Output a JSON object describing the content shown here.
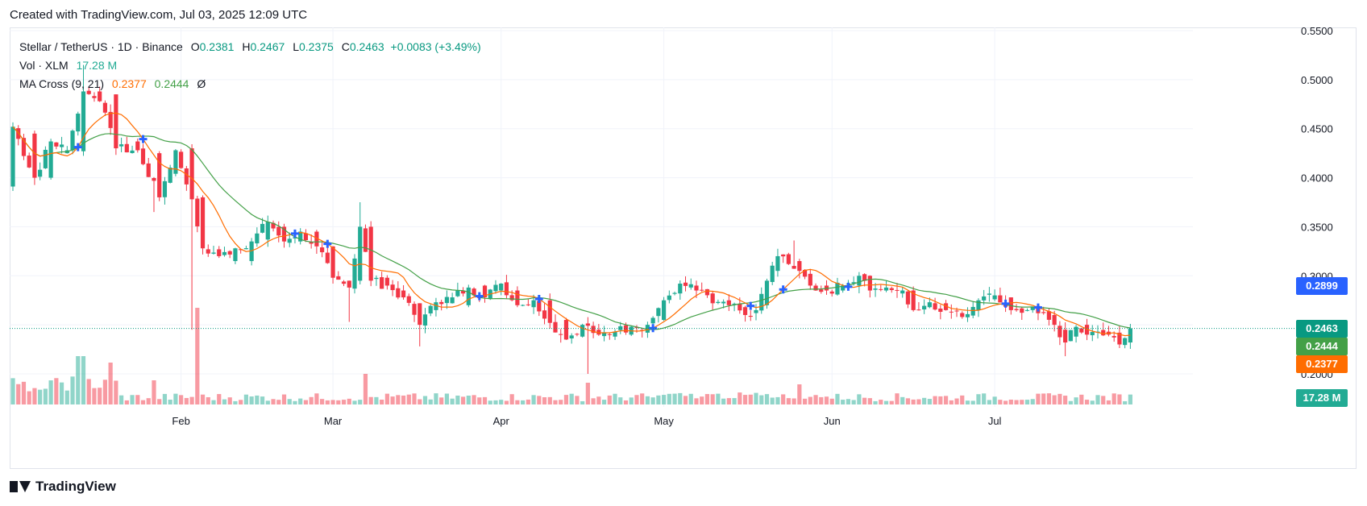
{
  "header": {
    "created": "Created with TradingView.com, Jul 03, 2025 12:09 UTC"
  },
  "legend": {
    "symbol": "Stellar / TetherUS · 1D · Binance",
    "o_label": "O",
    "o_value": "0.2381",
    "h_label": "H",
    "h_value": "0.2467",
    "l_label": "L",
    "l_value": "0.2375",
    "c_label": "C",
    "c_value": "0.2463",
    "change": "+0.0083 (+3.49%)",
    "vol_label": "Vol · XLM",
    "vol_value": "17.28 M",
    "ma_label": "MA Cross (9, 21)",
    "ma_fast": "0.2377",
    "ma_slow": "0.2444",
    "ma_extra": "Ø"
  },
  "price_tags": {
    "cross": "0.2899",
    "close": "0.2463",
    "ma_slow": "0.2444",
    "ma_fast": "0.2377",
    "volume": "17.28 M"
  },
  "brand": {
    "name": "TradingView"
  },
  "colors": {
    "up": "#22ab94",
    "down": "#f23645",
    "ma_fast": "#ff6d00",
    "ma_slow": "#43a047",
    "cross": "#2962ff"
  },
  "chart_data": {
    "type": "candlestick",
    "title": "Stellar / TetherUS · 1D · Binance",
    "y_ticks": [
      "0.5500",
      "0.5000",
      "0.4500",
      "0.4000",
      "0.3500",
      "0.3000",
      "0.2500",
      "0.2000"
    ],
    "ylim": [
      0.195,
      0.555
    ],
    "x_ticks": [
      "Feb",
      "Mar",
      "Apr",
      "May",
      "Jun",
      "Jul"
    ],
    "grid": true,
    "series": [
      {
        "name": "MA 9"
      },
      {
        "name": "MA 21"
      },
      {
        "name": "Vol"
      }
    ],
    "anchors": [
      [
        0,
        0.391,
        0.452,
        "d"
      ],
      [
        4,
        0.445,
        0.4,
        "d"
      ],
      [
        7,
        0.4,
        0.437,
        "u"
      ],
      [
        10,
        0.425,
        0.428,
        "u"
      ],
      [
        13,
        0.427,
        0.488,
        "u"
      ],
      [
        16,
        0.488,
        0.478,
        "d"
      ],
      [
        19,
        0.485,
        0.43,
        "d"
      ],
      [
        23,
        0.437,
        0.428,
        "d"
      ],
      [
        27,
        0.425,
        0.38,
        "d"
      ],
      [
        30,
        0.404,
        0.428,
        "u"
      ],
      [
        33,
        0.43,
        0.378,
        "d"
      ],
      [
        35,
        0.38,
        0.328,
        "d"
      ],
      [
        38,
        0.327,
        0.32,
        "d"
      ],
      [
        41,
        0.315,
        0.328,
        "u"
      ],
      [
        44,
        0.315,
        0.335,
        "u"
      ],
      [
        47,
        0.337,
        0.355,
        "u"
      ],
      [
        50,
        0.35,
        0.335,
        "d"
      ],
      [
        53,
        0.335,
        0.345,
        "u"
      ],
      [
        56,
        0.345,
        0.33,
        "d"
      ],
      [
        59,
        0.33,
        0.298,
        "d"
      ],
      [
        62,
        0.295,
        0.288,
        "d"
      ],
      [
        64,
        0.295,
        0.35,
        "u"
      ],
      [
        66,
        0.35,
        0.295,
        "d"
      ],
      [
        69,
        0.298,
        0.29,
        "d"
      ],
      [
        72,
        0.285,
        0.278,
        "d"
      ],
      [
        75,
        0.272,
        0.25,
        "d"
      ],
      [
        78,
        0.265,
        0.273,
        "u"
      ],
      [
        81,
        0.272,
        0.278,
        "u"
      ],
      [
        84,
        0.27,
        0.288,
        "u"
      ],
      [
        87,
        0.29,
        0.278,
        "d"
      ],
      [
        90,
        0.285,
        0.292,
        "u"
      ],
      [
        93,
        0.285,
        0.27,
        "d"
      ],
      [
        96,
        0.268,
        0.275,
        "u"
      ],
      [
        99,
        0.275,
        0.252,
        "d"
      ],
      [
        102,
        0.255,
        0.235,
        "d"
      ],
      [
        105,
        0.238,
        0.25,
        "u"
      ],
      [
        108,
        0.245,
        0.24,
        "d"
      ],
      [
        111,
        0.238,
        0.243,
        "u"
      ],
      [
        114,
        0.24,
        0.248,
        "u"
      ],
      [
        117,
        0.242,
        0.25,
        "u"
      ],
      [
        120,
        0.255,
        0.275,
        "u"
      ],
      [
        123,
        0.282,
        0.292,
        "u"
      ],
      [
        126,
        0.29,
        0.285,
        "d"
      ],
      [
        129,
        0.282,
        0.272,
        "d"
      ],
      [
        132,
        0.275,
        0.27,
        "d"
      ],
      [
        135,
        0.268,
        0.26,
        "d"
      ],
      [
        137,
        0.262,
        0.265,
        "u"
      ],
      [
        139,
        0.27,
        0.295,
        "u"
      ],
      [
        141,
        0.305,
        0.32,
        "u"
      ],
      [
        143,
        0.322,
        0.312,
        "d"
      ],
      [
        145,
        0.315,
        0.305,
        "d"
      ],
      [
        147,
        0.302,
        0.29,
        "d"
      ],
      [
        150,
        0.29,
        0.285,
        "d"
      ],
      [
        153,
        0.285,
        0.29,
        "u"
      ],
      [
        156,
        0.29,
        0.3,
        "u"
      ],
      [
        158,
        0.3,
        0.285,
        "d"
      ],
      [
        161,
        0.285,
        0.288,
        "u"
      ],
      [
        164,
        0.282,
        0.285,
        "d"
      ],
      [
        166,
        0.285,
        0.265,
        "d"
      ],
      [
        169,
        0.268,
        0.273,
        "u"
      ],
      [
        172,
        0.272,
        0.265,
        "d"
      ],
      [
        175,
        0.262,
        0.258,
        "d"
      ],
      [
        178,
        0.265,
        0.275,
        "u"
      ],
      [
        181,
        0.276,
        0.28,
        "u"
      ],
      [
        184,
        0.278,
        0.265,
        "d"
      ],
      [
        187,
        0.265,
        0.265,
        "d"
      ],
      [
        190,
        0.263,
        0.262,
        "d"
      ],
      [
        192,
        0.26,
        0.25,
        "d"
      ],
      [
        194,
        0.245,
        0.232,
        "d"
      ],
      [
        196,
        0.238,
        0.248,
        "u"
      ],
      [
        198,
        0.25,
        0.24,
        "d"
      ],
      [
        200,
        0.242,
        0.243,
        "u"
      ],
      [
        202,
        0.243,
        0.24,
        "d"
      ],
      [
        204,
        0.242,
        0.23,
        "d"
      ],
      [
        206,
        0.232,
        0.2463,
        "u"
      ]
    ],
    "candles_total": 207
  }
}
